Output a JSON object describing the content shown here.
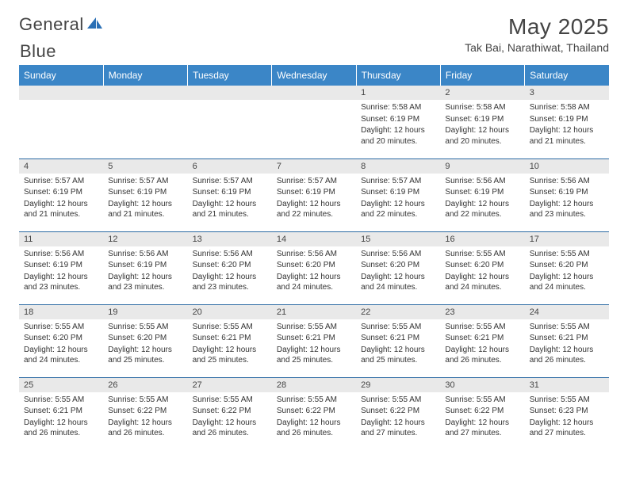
{
  "logo": {
    "text1": "General",
    "text2": "Blue"
  },
  "title": "May 2025",
  "location": "Tak Bai, Narathiwat, Thailand",
  "colors": {
    "header_bg": "#3b86c7",
    "header_text": "#ffffff",
    "date_bar_bg": "#e9e9e9",
    "row_border": "#2b6aa3",
    "logo_blue": "#2a6fb5"
  },
  "weekdays": [
    "Sunday",
    "Monday",
    "Tuesday",
    "Wednesday",
    "Thursday",
    "Friday",
    "Saturday"
  ],
  "weeks": [
    [
      {
        "empty": true
      },
      {
        "empty": true
      },
      {
        "empty": true
      },
      {
        "empty": true
      },
      {
        "date": "1",
        "sunrise": "5:58 AM",
        "sunset": "6:19 PM",
        "daylight": "12 hours and 20 minutes."
      },
      {
        "date": "2",
        "sunrise": "5:58 AM",
        "sunset": "6:19 PM",
        "daylight": "12 hours and 20 minutes."
      },
      {
        "date": "3",
        "sunrise": "5:58 AM",
        "sunset": "6:19 PM",
        "daylight": "12 hours and 21 minutes."
      }
    ],
    [
      {
        "date": "4",
        "sunrise": "5:57 AM",
        "sunset": "6:19 PM",
        "daylight": "12 hours and 21 minutes."
      },
      {
        "date": "5",
        "sunrise": "5:57 AM",
        "sunset": "6:19 PM",
        "daylight": "12 hours and 21 minutes."
      },
      {
        "date": "6",
        "sunrise": "5:57 AM",
        "sunset": "6:19 PM",
        "daylight": "12 hours and 21 minutes."
      },
      {
        "date": "7",
        "sunrise": "5:57 AM",
        "sunset": "6:19 PM",
        "daylight": "12 hours and 22 minutes."
      },
      {
        "date": "8",
        "sunrise": "5:57 AM",
        "sunset": "6:19 PM",
        "daylight": "12 hours and 22 minutes."
      },
      {
        "date": "9",
        "sunrise": "5:56 AM",
        "sunset": "6:19 PM",
        "daylight": "12 hours and 22 minutes."
      },
      {
        "date": "10",
        "sunrise": "5:56 AM",
        "sunset": "6:19 PM",
        "daylight": "12 hours and 23 minutes."
      }
    ],
    [
      {
        "date": "11",
        "sunrise": "5:56 AM",
        "sunset": "6:19 PM",
        "daylight": "12 hours and 23 minutes."
      },
      {
        "date": "12",
        "sunrise": "5:56 AM",
        "sunset": "6:19 PM",
        "daylight": "12 hours and 23 minutes."
      },
      {
        "date": "13",
        "sunrise": "5:56 AM",
        "sunset": "6:20 PM",
        "daylight": "12 hours and 23 minutes."
      },
      {
        "date": "14",
        "sunrise": "5:56 AM",
        "sunset": "6:20 PM",
        "daylight": "12 hours and 24 minutes."
      },
      {
        "date": "15",
        "sunrise": "5:56 AM",
        "sunset": "6:20 PM",
        "daylight": "12 hours and 24 minutes."
      },
      {
        "date": "16",
        "sunrise": "5:55 AM",
        "sunset": "6:20 PM",
        "daylight": "12 hours and 24 minutes."
      },
      {
        "date": "17",
        "sunrise": "5:55 AM",
        "sunset": "6:20 PM",
        "daylight": "12 hours and 24 minutes."
      }
    ],
    [
      {
        "date": "18",
        "sunrise": "5:55 AM",
        "sunset": "6:20 PM",
        "daylight": "12 hours and 24 minutes."
      },
      {
        "date": "19",
        "sunrise": "5:55 AM",
        "sunset": "6:20 PM",
        "daylight": "12 hours and 25 minutes."
      },
      {
        "date": "20",
        "sunrise": "5:55 AM",
        "sunset": "6:21 PM",
        "daylight": "12 hours and 25 minutes."
      },
      {
        "date": "21",
        "sunrise": "5:55 AM",
        "sunset": "6:21 PM",
        "daylight": "12 hours and 25 minutes."
      },
      {
        "date": "22",
        "sunrise": "5:55 AM",
        "sunset": "6:21 PM",
        "daylight": "12 hours and 25 minutes."
      },
      {
        "date": "23",
        "sunrise": "5:55 AM",
        "sunset": "6:21 PM",
        "daylight": "12 hours and 26 minutes."
      },
      {
        "date": "24",
        "sunrise": "5:55 AM",
        "sunset": "6:21 PM",
        "daylight": "12 hours and 26 minutes."
      }
    ],
    [
      {
        "date": "25",
        "sunrise": "5:55 AM",
        "sunset": "6:21 PM",
        "daylight": "12 hours and 26 minutes."
      },
      {
        "date": "26",
        "sunrise": "5:55 AM",
        "sunset": "6:22 PM",
        "daylight": "12 hours and 26 minutes."
      },
      {
        "date": "27",
        "sunrise": "5:55 AM",
        "sunset": "6:22 PM",
        "daylight": "12 hours and 26 minutes."
      },
      {
        "date": "28",
        "sunrise": "5:55 AM",
        "sunset": "6:22 PM",
        "daylight": "12 hours and 26 minutes."
      },
      {
        "date": "29",
        "sunrise": "5:55 AM",
        "sunset": "6:22 PM",
        "daylight": "12 hours and 27 minutes."
      },
      {
        "date": "30",
        "sunrise": "5:55 AM",
        "sunset": "6:22 PM",
        "daylight": "12 hours and 27 minutes."
      },
      {
        "date": "31",
        "sunrise": "5:55 AM",
        "sunset": "6:23 PM",
        "daylight": "12 hours and 27 minutes."
      }
    ]
  ],
  "labels": {
    "sunrise": "Sunrise:",
    "sunset": "Sunset:",
    "daylight": "Daylight:"
  }
}
